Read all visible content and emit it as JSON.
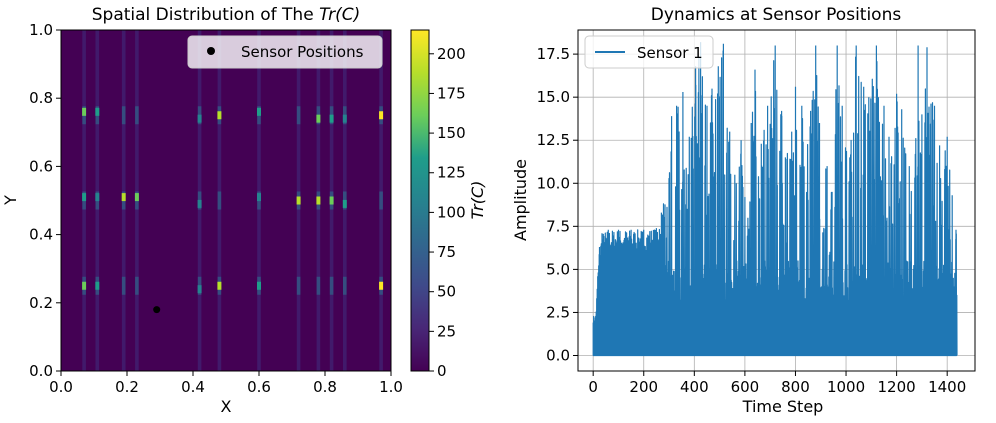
{
  "chart_data": [
    {
      "type": "heatmap",
      "title_main": "Spatial Distribution of The ",
      "title_math": "Tr(C)",
      "xlabel": "X",
      "ylabel": "Y",
      "xlim": [
        0.0,
        1.0
      ],
      "ylim": [
        0.0,
        1.0
      ],
      "x_ticks": [
        "0.0",
        "0.2",
        "0.4",
        "0.6",
        "0.8",
        "1.0"
      ],
      "y_ticks": [
        "0.0",
        "0.2",
        "0.4",
        "0.6",
        "0.8",
        "1.0"
      ],
      "legend": {
        "label": "Sensor Positions",
        "position": "top-right"
      },
      "sensor_points": [
        {
          "x": 0.29,
          "y": 0.18
        }
      ],
      "colorbar": {
        "label": "Tr(C)",
        "range": [
          0,
          215
        ],
        "ticks": [
          "0",
          "25",
          "50",
          "75",
          "100",
          "125",
          "150",
          "175",
          "200"
        ],
        "colors": [
          "#440154",
          "#482777",
          "#3f4a8a",
          "#31678e",
          "#26838f",
          "#1f9d8a",
          "#6cce5a",
          "#b6de2b",
          "#fee825"
        ]
      },
      "columns_x": [
        0.07,
        0.11,
        0.19,
        0.23,
        0.42,
        0.48,
        0.6,
        0.72,
        0.78,
        0.82,
        0.86,
        0.97
      ],
      "hotspot_rows_y": [
        0.25,
        0.5,
        0.75
      ],
      "hotspots": [
        {
          "x": 0.07,
          "y": 0.76,
          "v": 150
        },
        {
          "x": 0.11,
          "y": 0.76,
          "v": 140
        },
        {
          "x": 0.07,
          "y": 0.51,
          "v": 130
        },
        {
          "x": 0.11,
          "y": 0.51,
          "v": 120
        },
        {
          "x": 0.19,
          "y": 0.51,
          "v": 190
        },
        {
          "x": 0.23,
          "y": 0.51,
          "v": 160
        },
        {
          "x": 0.07,
          "y": 0.25,
          "v": 150
        },
        {
          "x": 0.11,
          "y": 0.25,
          "v": 130
        },
        {
          "x": 0.42,
          "y": 0.74,
          "v": 110
        },
        {
          "x": 0.48,
          "y": 0.75,
          "v": 200
        },
        {
          "x": 0.42,
          "y": 0.24,
          "v": 110
        },
        {
          "x": 0.48,
          "y": 0.25,
          "v": 190
        },
        {
          "x": 0.6,
          "y": 0.76,
          "v": 130
        },
        {
          "x": 0.6,
          "y": 0.51,
          "v": 120
        },
        {
          "x": 0.6,
          "y": 0.25,
          "v": 130
        },
        {
          "x": 0.72,
          "y": 0.5,
          "v": 200
        },
        {
          "x": 0.78,
          "y": 0.74,
          "v": 160
        },
        {
          "x": 0.82,
          "y": 0.74,
          "v": 140
        },
        {
          "x": 0.86,
          "y": 0.74,
          "v": 120
        },
        {
          "x": 0.78,
          "y": 0.5,
          "v": 180
        },
        {
          "x": 0.82,
          "y": 0.5,
          "v": 150
        },
        {
          "x": 0.86,
          "y": 0.49,
          "v": 140
        },
        {
          "x": 0.97,
          "y": 0.75,
          "v": 215
        },
        {
          "x": 0.97,
          "y": 0.25,
          "v": 215
        },
        {
          "x": 0.42,
          "y": 0.49,
          "v": 100
        }
      ]
    },
    {
      "type": "line",
      "title": "Dynamics at Sensor Positions",
      "xlabel": "Time Step",
      "ylabel": "Amplitude",
      "xlim": [
        -60,
        1510
      ],
      "ylim": [
        -0.9,
        18.9
      ],
      "x_ticks": [
        "0",
        "200",
        "400",
        "600",
        "800",
        "1000",
        "1200",
        "1400"
      ],
      "y_ticks": [
        "0.0",
        "2.5",
        "5.0",
        "7.5",
        "10.0",
        "12.5",
        "15.0",
        "17.5"
      ],
      "grid": true,
      "legend": {
        "position": "top-left"
      },
      "color": "#1f77b4",
      "series": [
        {
          "name": "Sensor 1",
          "n_points": 1440,
          "peaks": [
            [
              10,
              2.3
            ],
            [
              18,
              4.6
            ],
            [
              25,
              6.3
            ],
            [
              35,
              7.1
            ],
            [
              60,
              7.3
            ],
            [
              100,
              7.3
            ],
            [
              150,
              7.3
            ],
            [
              200,
              7.3
            ],
            [
              250,
              7.4
            ],
            [
              270,
              8.3
            ],
            [
              300,
              10.3
            ],
            [
              310,
              13.9
            ],
            [
              330,
              14.5
            ],
            [
              355,
              15.3
            ],
            [
              380,
              12.7
            ],
            [
              405,
              16.8
            ],
            [
              425,
              18.2
            ],
            [
              450,
              14.5
            ],
            [
              470,
              15.5
            ],
            [
              495,
              16.8
            ],
            [
              515,
              18.1
            ],
            [
              540,
              13.0
            ],
            [
              560,
              10.5
            ],
            [
              585,
              12.5
            ],
            [
              612,
              8.0
            ],
            [
              625,
              13.5
            ],
            [
              640,
              16.6
            ],
            [
              665,
              12.3
            ],
            [
              690,
              14.5
            ],
            [
              720,
              18.0
            ],
            [
              745,
              14.2
            ],
            [
              760,
              11.5
            ],
            [
              785,
              13.0
            ],
            [
              800,
              15.6
            ],
            [
              825,
              14.5
            ],
            [
              860,
              14.2
            ],
            [
              880,
              18.0
            ],
            [
              895,
              13.5
            ],
            [
              925,
              11.0
            ],
            [
              945,
              9.5
            ],
            [
              965,
              18.0
            ],
            [
              985,
              14.5
            ],
            [
              1015,
              11.5
            ],
            [
              1040,
              18.0
            ],
            [
              1070,
              15.6
            ],
            [
              1090,
              15.0
            ],
            [
              1120,
              18.0
            ],
            [
              1150,
              14.5
            ],
            [
              1170,
              12.7
            ],
            [
              1200,
              15.2
            ],
            [
              1220,
              14.3
            ],
            [
              1250,
              11.0
            ],
            [
              1285,
              18.0
            ],
            [
              1300,
              14.0
            ],
            [
              1320,
              17.9
            ],
            [
              1350,
              14.5
            ],
            [
              1370,
              12.2
            ],
            [
              1400,
              12.7
            ],
            [
              1420,
              9.3
            ],
            [
              1435,
              7.3
            ]
          ]
        }
      ]
    }
  ]
}
